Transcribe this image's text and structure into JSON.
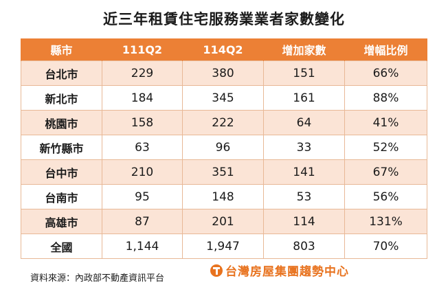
{
  "title": "近三年租賃住宅服務業業者家數變化",
  "table": {
    "headers": [
      "縣市",
      "111Q2",
      "114Q2",
      "增加家數",
      "增幅比例"
    ],
    "rows": [
      {
        "county": "台北市",
        "q2_111": "229",
        "q2_114": "380",
        "increase": "151",
        "growth": "66%"
      },
      {
        "county": "新北市",
        "q2_111": "184",
        "q2_114": "345",
        "increase": "161",
        "growth": "88%"
      },
      {
        "county": "桃園市",
        "q2_111": "158",
        "q2_114": "222",
        "increase": "64",
        "growth": "41%"
      },
      {
        "county": "新竹縣市",
        "q2_111": "63",
        "q2_114": "96",
        "increase": "33",
        "growth": "52%"
      },
      {
        "county": "台中市",
        "q2_111": "210",
        "q2_114": "351",
        "increase": "141",
        "growth": "67%"
      },
      {
        "county": "台南市",
        "q2_111": "95",
        "q2_114": "148",
        "increase": "53",
        "growth": "56%"
      },
      {
        "county": "高雄市",
        "q2_111": "87",
        "q2_114": "201",
        "increase": "114",
        "growth": "131%"
      },
      {
        "county": "全國",
        "q2_111": "1,144",
        "q2_114": "1,947",
        "increase": "803",
        "growth": "70%"
      }
    ],
    "highlights": [
      {
        "row": 1,
        "column": "increase",
        "color": "#c0272d"
      },
      {
        "row": 6,
        "column": "growth",
        "color": "#c0272d"
      }
    ]
  },
  "colors": {
    "header_bg": "#ec8035",
    "shaded_row_bg": "#fbe4d6",
    "border": "#e8b896",
    "highlight": "#c0272d",
    "brand": "#e8731f"
  },
  "footer": {
    "source": "資料來源：內政部不動產資訊平台",
    "logo_text": "台灣房屋集團趨勢中心",
    "logo_icon": "taiwan-realty-logo-icon"
  }
}
